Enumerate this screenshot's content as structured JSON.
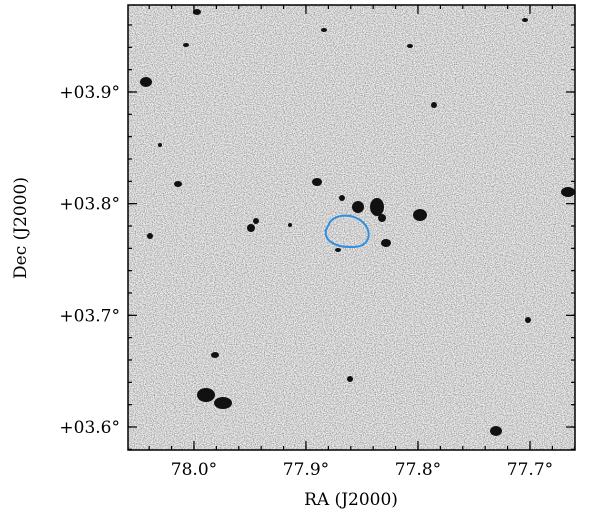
{
  "chart_data": {
    "type": "image",
    "x_label": "RA (J2000)",
    "y_label": "Dec (J2000)",
    "xlim": [
      78.0589,
      77.6598
    ],
    "ylim": [
      3.5794,
      3.9779
    ],
    "xticks": [
      {
        "value": 78.0,
        "label": "78.0°"
      },
      {
        "value": 77.9,
        "label": "77.9°"
      },
      {
        "value": 77.8,
        "label": "77.8°"
      },
      {
        "value": 77.7,
        "label": "77.7°"
      }
    ],
    "yticks": [
      {
        "value": 3.6,
        "label": "+03.6°"
      },
      {
        "value": 3.7,
        "label": "+03.7°"
      },
      {
        "value": 3.8,
        "label": "+03.8°"
      },
      {
        "value": 3.9,
        "label": "+03.9°"
      }
    ],
    "contour_color": "#2f8fe0"
  }
}
